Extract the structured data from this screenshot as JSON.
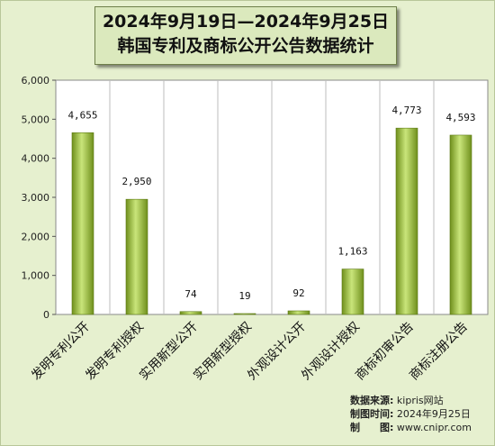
{
  "title_lines": [
    "2024年9月19日—2024年9月25日",
    "韩国专利及商标公开公告数据统计"
  ],
  "source": {
    "data_label": "数据来源:",
    "data_value": "kipris网站",
    "time_label": "制图时间:",
    "time_value": "2024年9月25日",
    "maker_label": "制　　图:",
    "maker_value": "www.cnipr.com"
  },
  "colors": {
    "background": "#e6f0cf",
    "plot_background": "#ffffff",
    "bar_dark": "#6f8f1c",
    "bar_mid": "#a9cc46",
    "bar_light": "#c9e57a"
  },
  "chart_data": {
    "type": "bar",
    "title": "2024年9月19日—2024年9月25日 韩国专利及商标公开公告数据统计",
    "categories": [
      "发明专利公开",
      "发明专利授权",
      "实用新型公开",
      "实用新型授权",
      "外观设计公开",
      "外观设计授权",
      "商标初审公告",
      "商标注册公告"
    ],
    "values": [
      4655,
      2950,
      74,
      19,
      92,
      1163,
      4773,
      4593
    ],
    "value_labels": [
      "4,655",
      "2,950",
      "74",
      "19",
      "92",
      "1,163",
      "4,773",
      "4,593"
    ],
    "ylim": [
      0,
      6000
    ],
    "yticks": [
      0,
      1000,
      2000,
      3000,
      4000,
      5000,
      6000
    ],
    "ytick_labels": [
      "0",
      "1,000",
      "2,000",
      "3,000",
      "4,000",
      "5,000",
      "6,000"
    ],
    "grid": true,
    "legend": "none"
  }
}
